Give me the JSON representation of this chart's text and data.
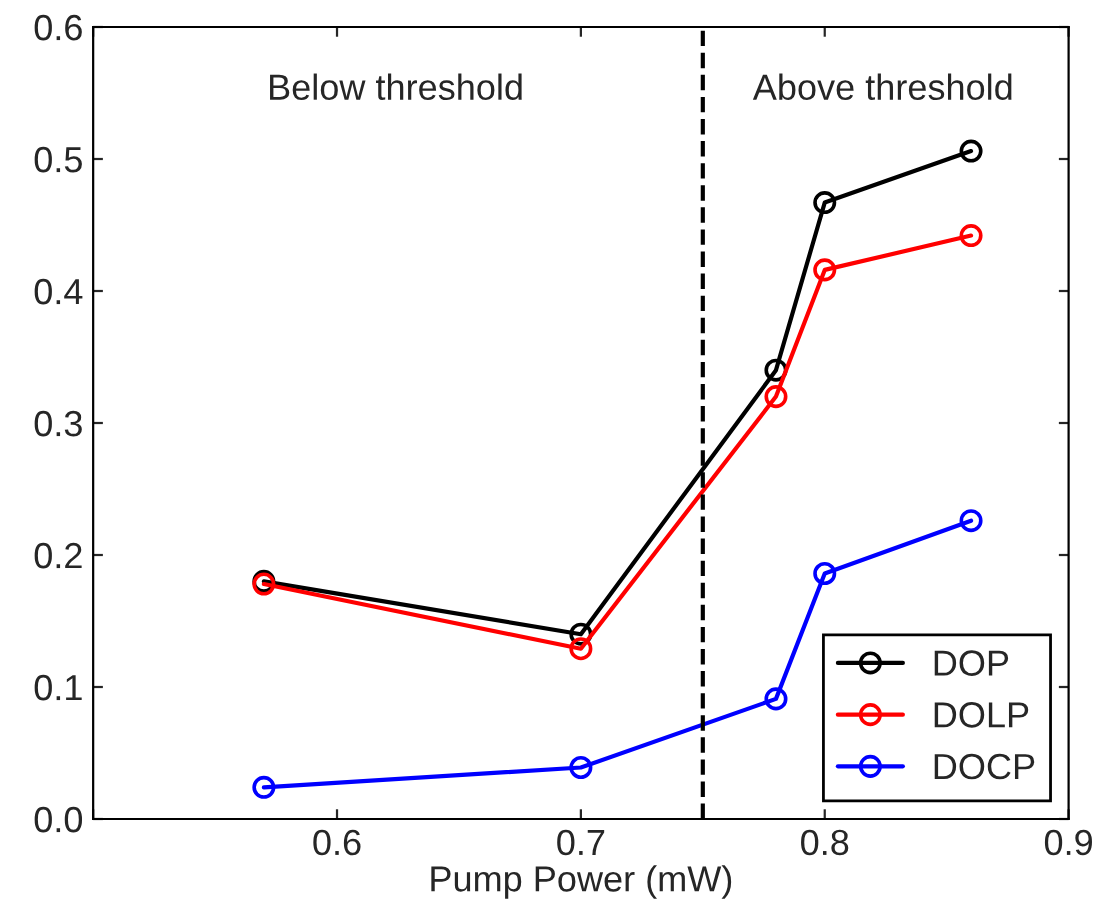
{
  "chart_data": {
    "type": "line",
    "xlabel": "Pump Power (mW)",
    "x": [
      0.57,
      0.7,
      0.78,
      0.8,
      0.86
    ],
    "series": [
      {
        "name": "DOP",
        "color": "#000000",
        "values": [
          0.18,
          0.14,
          0.34,
          0.467,
          0.506
        ]
      },
      {
        "name": "DOLP",
        "color": "#ff0000",
        "values": [
          0.178,
          0.129,
          0.32,
          0.416,
          0.442
        ]
      },
      {
        "name": "DOCP",
        "color": "#0000ff",
        "values": [
          0.024,
          0.039,
          0.091,
          0.186,
          0.226
        ]
      }
    ],
    "xlim": [
      0.5,
      0.9
    ],
    "xticks": [
      {
        "value": 0.5,
        "label": null
      },
      0.6,
      0.7,
      0.8,
      0.9
    ],
    "ylim": [
      0,
      0.6
    ],
    "yticks": [
      {
        "value": 0,
        "label": "0.0"
      },
      0.1,
      0.2,
      0.3,
      0.4,
      0.5,
      0.6
    ],
    "ref_lines": [
      {
        "axis": "x",
        "value": 0.75,
        "color": "#000000",
        "line_style": "dashed"
      }
    ],
    "annotations": [
      "Below threshold",
      "Above threshold"
    ],
    "marker": "circle",
    "line_style": "solid",
    "grid": false,
    "legend": "bottom right"
  }
}
